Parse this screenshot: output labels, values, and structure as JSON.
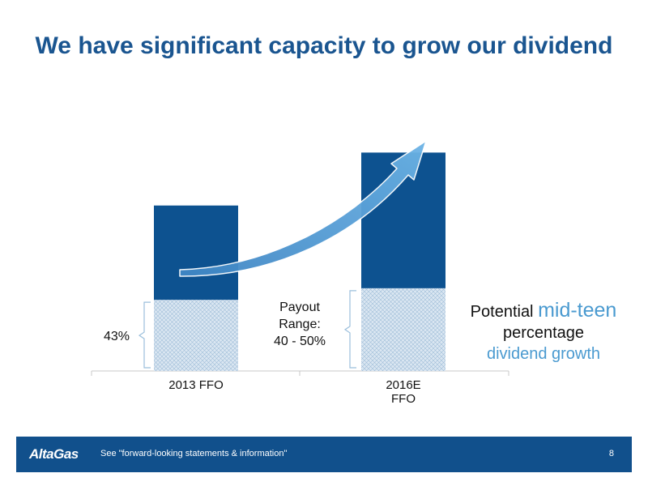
{
  "title": "We have significant capacity to grow our dividend",
  "chart_data": {
    "type": "bar",
    "stacked": true,
    "categories": [
      {
        "lines": [
          "2013 FFO"
        ]
      },
      {
        "lines": [
          "2016E",
          "FFO"
        ]
      }
    ],
    "series": [
      {
        "values": [
          43,
          50
        ],
        "color": "#c9dcec",
        "pattern": "crosshatch"
      },
      {
        "values": [
          57,
          82
        ],
        "color": "#0d5290"
      }
    ],
    "ylim": [
      0,
      140
    ],
    "labels": {
      "base_2013": "43%",
      "payout_range": [
        "Payout",
        "Range:",
        "40 - 50%"
      ]
    },
    "arrow": {
      "from": "2013 FFO",
      "to": "2016E FFO",
      "color": "#5aa2d8"
    }
  },
  "note": {
    "prefix": "Potential ",
    "highlight": "mid-teen",
    "line2": "percentage",
    "line3": "dividend growth"
  },
  "footer": {
    "logo": "AltaGas",
    "text": "See \"forward-looking statements & information\"",
    "page": "8"
  },
  "colors": {
    "title": "#1a5590",
    "footer_bg": "#11508c",
    "bar_dark": "#0d5290",
    "accent": "#4a9ad0"
  }
}
